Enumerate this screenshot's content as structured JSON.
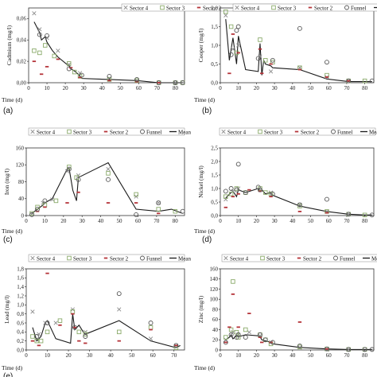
{
  "legend": {
    "sector4": "Sector 4",
    "sector3": "Sector 3",
    "sector2": "Sector 2",
    "funnel": "Funnel",
    "mean": "Mean"
  },
  "xlabel": "Time (d)",
  "chart_data": [
    {
      "type": "scatter",
      "panel_label": "(a)",
      "ylabel": "Cadmium (mg/l)",
      "xlim": [
        0,
        85
      ],
      "ylim": [
        0,
        0.07
      ],
      "xticks": [
        0,
        10,
        20,
        30,
        40,
        50,
        60,
        70,
        80
      ],
      "yticks": [
        0,
        0.02,
        0.04,
        0.06
      ],
      "ytick_labels": [
        "0,00",
        "0,02",
        "0,04",
        "0,06"
      ],
      "legend_position": "top-right",
      "mean": {
        "x": [
          3,
          6,
          7,
          9,
          10,
          13,
          16,
          21,
          22,
          23,
          25,
          27,
          28,
          29,
          44,
          59,
          71,
          80,
          84
        ],
        "y": [
          0.057,
          0.047,
          0.04,
          0.043,
          0.038,
          0.03,
          0.024,
          0.017,
          0.016,
          0.013,
          0.011,
          0.008,
          0.006,
          0.004,
          0.003,
          0.002,
          0,
          0,
          0
        ]
      },
      "series": [
        {
          "name": "Sector 4",
          "marker": "x",
          "x": [
            3,
            6,
            10,
            16,
            22,
            28,
            44,
            59,
            71,
            80
          ],
          "y": [
            0.065,
            0.05,
            0.042,
            0.03,
            0.017,
            0.009,
            0.004,
            0.002,
            0,
            0
          ]
        },
        {
          "name": "Sector 3",
          "marker": "square",
          "x": [
            3,
            6,
            9,
            14,
            22,
            25,
            28,
            44,
            59,
            71,
            80,
            84
          ],
          "y": [
            0.03,
            0.028,
            0.035,
            0.025,
            0.018,
            0.01,
            0.006,
            0.003,
            0.002,
            0,
            0,
            0
          ]
        },
        {
          "name": "Sector 2",
          "marker": "dash",
          "x": [
            3,
            7,
            10,
            16,
            23,
            28,
            44,
            59,
            71
          ],
          "y": [
            0.02,
            0.008,
            0.015,
            0.022,
            0.014,
            0.005,
            0.002,
            0.001,
            0
          ]
        },
        {
          "name": "Funnel",
          "marker": "circle",
          "x": [
            6,
            10,
            22,
            29,
            44,
            59,
            71,
            80,
            84
          ],
          "y": [
            0.045,
            0.044,
            0.013,
            0.007,
            0.006,
            0.003,
            0,
            0,
            0
          ]
        }
      ]
    },
    {
      "type": "scatter",
      "panel_label": "(b)",
      "ylabel": "Cooper (mg/l)",
      "xlim": [
        0,
        85
      ],
      "ylim": [
        0,
        2.0
      ],
      "xticks": [
        0,
        10,
        20,
        30,
        40,
        50,
        60,
        70,
        80
      ],
      "yticks": [
        0,
        0.5,
        1.0,
        1.5,
        2.0
      ],
      "ytick_labels": [
        "0,0",
        "0,5",
        "1,0",
        "1,5",
        "2,0"
      ],
      "legend_position": "top-right",
      "mean": {
        "x": [
          3,
          5,
          7,
          9,
          10,
          14,
          21,
          22,
          23,
          24,
          25,
          28,
          29,
          44,
          59,
          71,
          80,
          84
        ],
        "y": [
          1.7,
          0.6,
          1.2,
          0.5,
          1.25,
          0.35,
          0.3,
          1.05,
          0.2,
          0.6,
          0.5,
          0.45,
          0.4,
          0.35,
          0.1,
          0.03,
          0.03,
          0.03
        ]
      },
      "series": [
        {
          "name": "Sector 4",
          "marker": "x",
          "x": [
            3,
            7,
            10,
            22,
            28,
            44,
            59,
            71
          ],
          "y": [
            1.8,
            0.9,
            1.0,
            0.7,
            0.3,
            0.4,
            0.15,
            0.05
          ]
        },
        {
          "name": "Sector 3",
          "marker": "square",
          "x": [
            3,
            6,
            9,
            22,
            25,
            29,
            44,
            59,
            71,
            80
          ],
          "y": [
            1.9,
            1.5,
            0.8,
            1.15,
            0.6,
            0.55,
            0.4,
            0.2,
            0.05,
            0.05
          ]
        },
        {
          "name": "Sector 2",
          "marker": "dash",
          "x": [
            5,
            7,
            10,
            22,
            23,
            28,
            44,
            59,
            71
          ],
          "y": [
            0.25,
            1.3,
            0.8,
            0.9,
            0.25,
            0.5,
            0.35,
            0.15,
            0.05
          ]
        },
        {
          "name": "Funnel",
          "marker": "circle",
          "x": [
            6,
            9,
            10,
            21,
            29,
            44,
            59,
            71,
            84
          ],
          "y": [
            0.75,
            1.4,
            1.5,
            0.65,
            0.6,
            1.45,
            0.55,
            0.05,
            0.05
          ]
        }
      ]
    },
    {
      "type": "scatter",
      "panel_label": "(c)",
      "ylabel": "Iron (mg/l)",
      "xlim": [
        0,
        85
      ],
      "ylim": [
        0,
        160
      ],
      "xticks": [
        0,
        10,
        20,
        30,
        40,
        50,
        60,
        70,
        80
      ],
      "yticks": [
        0,
        40,
        80,
        120,
        160
      ],
      "ytick_labels": [
        "0",
        "40",
        "80",
        "120",
        "160"
      ],
      "legend_position": "top",
      "mean": {
        "x": [
          3,
          6,
          9,
          10,
          14,
          22,
          23,
          25,
          27,
          28,
          44,
          59,
          71,
          78,
          84
        ],
        "y": [
          5,
          15,
          25,
          30,
          40,
          110,
          112,
          60,
          35,
          90,
          125,
          15,
          10,
          15,
          5
        ]
      },
      "series": [
        {
          "name": "Sector 4",
          "marker": "x",
          "x": [
            3,
            9,
            14,
            22,
            28,
            44,
            59,
            71
          ],
          "y": [
            3,
            30,
            38,
            105,
            95,
            110,
            45,
            30
          ]
        },
        {
          "name": "Sector 3",
          "marker": "square",
          "x": [
            3,
            6,
            10,
            16,
            23,
            27,
            44,
            59,
            71,
            80
          ],
          "y": [
            5,
            20,
            25,
            35,
            115,
            90,
            100,
            50,
            15,
            10
          ]
        },
        {
          "name": "Sector 2",
          "marker": "dash",
          "x": [
            6,
            10,
            22,
            28,
            44,
            59,
            71
          ],
          "y": [
            10,
            20,
            30,
            55,
            30,
            30,
            5
          ]
        },
        {
          "name": "Funnel",
          "marker": "circle",
          "x": [
            3,
            6,
            10,
            23,
            28,
            44,
            59,
            71,
            84
          ],
          "y": [
            2,
            15,
            35,
            110,
            85,
            85,
            2,
            30,
            10
          ]
        }
      ]
    },
    {
      "type": "scatter",
      "panel_label": "(d)",
      "ylabel": "Nickel (mg/l)",
      "xlim": [
        0,
        85
      ],
      "ylim": [
        0,
        2.5
      ],
      "xticks": [
        0,
        10,
        20,
        30,
        40,
        50,
        60,
        70,
        80
      ],
      "yticks": [
        0,
        0.5,
        1.0,
        1.5,
        2.0,
        2.5
      ],
      "ytick_labels": [
        "0,0",
        "0,5",
        "1,0",
        "1,5",
        "2,0",
        "2,5"
      ],
      "legend_position": "top",
      "mean": {
        "x": [
          3,
          6,
          7,
          9,
          10,
          14,
          21,
          22,
          23,
          25,
          28,
          29,
          44,
          59,
          71,
          80,
          84
        ],
        "y": [
          0.65,
          0.85,
          0.9,
          0.7,
          0.95,
          0.85,
          1.0,
          0.9,
          0.95,
          0.8,
          0.85,
          0.75,
          0.35,
          0.15,
          0.05,
          0.02,
          0.02
        ]
      },
      "series": [
        {
          "name": "Sector 4",
          "marker": "x",
          "x": [
            3,
            7,
            10,
            22,
            28,
            44,
            59,
            71
          ],
          "y": [
            0.6,
            0.9,
            1.0,
            0.95,
            0.85,
            0.4,
            0.15,
            0.05
          ]
        },
        {
          "name": "Sector 3",
          "marker": "square",
          "x": [
            3,
            6,
            9,
            14,
            22,
            25,
            28,
            44,
            59,
            71,
            80
          ],
          "y": [
            0.7,
            0.8,
            1.0,
            0.85,
            1.0,
            0.85,
            0.8,
            0.35,
            0.15,
            0.05,
            0.02
          ]
        },
        {
          "name": "Sector 2",
          "marker": "dash",
          "x": [
            3,
            7,
            10,
            16,
            22,
            28,
            44,
            59
          ],
          "y": [
            0.3,
            0.7,
            0.8,
            0.95,
            0.9,
            0.7,
            0.15,
            0.1
          ]
        },
        {
          "name": "Funnel",
          "marker": "circle",
          "x": [
            3,
            6,
            9,
            10,
            14,
            21,
            22,
            29,
            44,
            59,
            71,
            84
          ],
          "y": [
            0.9,
            1.0,
            0.95,
            1.9,
            0.85,
            1.05,
            0.95,
            0.8,
            0.4,
            0.6,
            0.05,
            0.02
          ]
        }
      ]
    },
    {
      "type": "scatter",
      "panel_label": "(e)",
      "ylabel": "Lead (mg/l)",
      "xlim": [
        0,
        75
      ],
      "ylim": [
        0,
        1.8
      ],
      "xticks": [
        0,
        10,
        20,
        30,
        40,
        50,
        60,
        70
      ],
      "yticks": [
        0,
        0.2,
        0.4,
        0.6,
        0.8,
        1.0,
        1.2,
        1.4,
        1.6,
        1.8
      ],
      "ytick_labels": [
        "0,0",
        "0,2",
        "0,4",
        "0,6",
        "0,8",
        "1,0",
        "1,2",
        "1,4",
        "1,6",
        "1,8"
      ],
      "legend_position": "top",
      "mean": {
        "x": [
          3,
          5,
          7,
          9,
          10,
          14,
          21,
          22,
          23,
          25,
          27,
          28,
          44,
          59,
          71,
          73
        ],
        "y": [
          0.5,
          0.2,
          0.3,
          0.6,
          0.65,
          0.25,
          0.15,
          0.8,
          0.45,
          0.55,
          0.4,
          0.35,
          0.65,
          0.2,
          0.05,
          0.1
        ]
      },
      "series": [
        {
          "name": "Sector 4",
          "marker": "x",
          "x": [
            3,
            6,
            9,
            14,
            22,
            28,
            44,
            59,
            71
          ],
          "y": [
            0.85,
            0.35,
            0.6,
            0.6,
            0.9,
            0.4,
            0.9,
            0.25,
            0.1
          ]
        },
        {
          "name": "Sector 3",
          "marker": "square",
          "x": [
            3,
            5,
            7,
            10,
            16,
            22,
            25,
            28,
            44,
            59,
            71
          ],
          "y": [
            0.3,
            0.2,
            0.2,
            0.4,
            0.65,
            0.85,
            0.4,
            0.35,
            0.4,
            0.5,
            0.05
          ]
        },
        {
          "name": "Sector 2",
          "marker": "dash",
          "x": [
            3,
            6,
            10,
            16,
            22,
            23,
            25,
            28,
            44,
            59,
            71
          ],
          "y": [
            0.2,
            0.1,
            1.7,
            0.55,
            0.8,
            0.5,
            0.2,
            0.15,
            0.2,
            0.45,
            0.1
          ]
        },
        {
          "name": "Funnel",
          "marker": "circle",
          "x": [
            5,
            10,
            23,
            28,
            44,
            59,
            71
          ],
          "y": [
            0.3,
            0.6,
            0.5,
            0.3,
            1.25,
            0.6,
            0.1
          ]
        }
      ]
    },
    {
      "type": "scatter",
      "panel_label": "",
      "ylabel": "Zinc (mg/l)",
      "xlim": [
        0,
        85
      ],
      "ylim": [
        0,
        160
      ],
      "xticks": [
        0,
        10,
        20,
        30,
        40,
        50,
        60,
        70,
        80
      ],
      "yticks": [
        0,
        20,
        40,
        60,
        80,
        100,
        120,
        140,
        160
      ],
      "ytick_labels": [
        "0",
        "20",
        "40",
        "60",
        "80",
        "100",
        "120",
        "140",
        "160"
      ],
      "legend_position": "top",
      "mean": {
        "x": [
          3,
          5,
          6,
          7,
          9,
          10,
          14,
          21,
          22,
          23,
          25,
          28,
          29,
          44,
          59,
          71,
          80,
          84
        ],
        "y": [
          20,
          25,
          30,
          22,
          28,
          26,
          30,
          28,
          26,
          20,
          18,
          15,
          12,
          5,
          2,
          1,
          1,
          1
        ]
      },
      "series": [
        {
          "name": "Sector 4",
          "marker": "x",
          "x": [
            3,
            7,
            10,
            16,
            22,
            28,
            44,
            59,
            71
          ],
          "y": [
            20,
            35,
            30,
            35,
            28,
            15,
            5,
            2,
            1
          ]
        },
        {
          "name": "Sector 3",
          "marker": "square",
          "x": [
            3,
            6,
            7,
            9,
            10,
            14,
            22,
            25,
            28,
            44,
            59,
            71,
            80
          ],
          "y": [
            25,
            40,
            135,
            35,
            25,
            40,
            30,
            20,
            12,
            6,
            2,
            1,
            1
          ]
        },
        {
          "name": "Sector 2",
          "marker": "dash",
          "x": [
            3,
            5,
            7,
            10,
            16,
            22,
            23,
            28,
            44,
            59
          ],
          "y": [
            15,
            45,
            110,
            45,
            72,
            25,
            15,
            15,
            55,
            2
          ]
        },
        {
          "name": "Funnel",
          "marker": "circle",
          "x": [
            3,
            6,
            9,
            10,
            14,
            22,
            25,
            29,
            44,
            59,
            71,
            80,
            84
          ],
          "y": [
            15,
            30,
            25,
            30,
            25,
            30,
            20,
            15,
            8,
            2,
            1,
            1,
            1
          ]
        }
      ]
    }
  ]
}
